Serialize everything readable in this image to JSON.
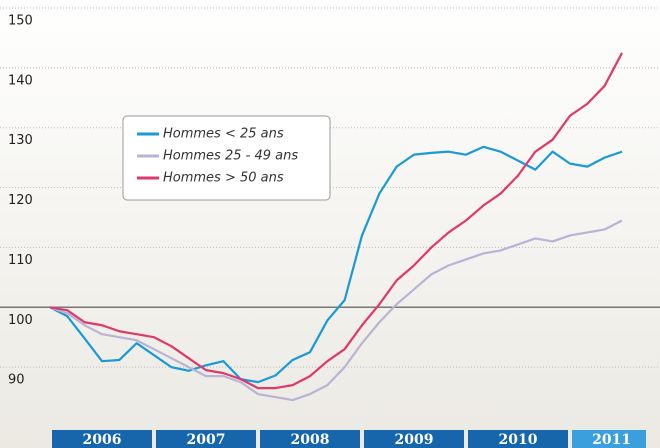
{
  "chart_data": {
    "type": "line",
    "x": [
      2006,
      2006.167,
      2006.333,
      2006.5,
      2006.667,
      2006.833,
      2007,
      2007.167,
      2007.333,
      2007.5,
      2007.667,
      2007.833,
      2008,
      2008.167,
      2008.333,
      2008.5,
      2008.667,
      2008.833,
      2009,
      2009.167,
      2009.333,
      2009.5,
      2009.667,
      2009.833,
      2010,
      2010.167,
      2010.333,
      2010.5,
      2010.667,
      2010.833,
      2011,
      2011.167,
      2011.333,
      2011.5
    ],
    "series": [
      {
        "name": "Hommes < 25 ans",
        "color": "#1a9ad6",
        "values": [
          100,
          98.5,
          94.8,
          91,
          91.2,
          94,
          92,
          90,
          89.4,
          90.3,
          91,
          88,
          87.5,
          88.6,
          91.2,
          92.5,
          97.8,
          101.2,
          112,
          119,
          123.5,
          125.5,
          125.8,
          126,
          125.5,
          126.8,
          126,
          124.5,
          123,
          126,
          124,
          123.5,
          125,
          126
        ]
      },
      {
        "name": "Hommes 25 - 49 ans",
        "color": "#b9b3d6",
        "values": [
          100,
          99,
          97,
          95.5,
          95,
          94.5,
          93,
          91.5,
          90,
          88.5,
          88.5,
          87.5,
          85.5,
          85,
          84.5,
          85.5,
          87,
          90,
          94,
          97.5,
          100.5,
          103,
          105.5,
          107,
          108,
          109,
          109.5,
          110.5,
          111.5,
          111,
          112,
          112.5,
          113,
          114.5
        ]
      },
      {
        "name": "Hommes > 50 ans",
        "color": "#e0386a",
        "values": [
          100,
          99.5,
          97.5,
          97,
          96,
          95.5,
          95,
          93.5,
          91.5,
          89.5,
          89,
          88,
          86.5,
          86.5,
          87,
          88.5,
          91,
          93,
          97,
          100.5,
          104.5,
          107,
          110,
          112.5,
          114.5,
          117,
          119,
          122,
          126,
          128,
          132,
          134,
          137,
          142.5
        ]
      }
    ],
    "xlim": [
      2006,
      2011.75
    ],
    "xticks": [
      {
        "value": 2006.5,
        "label": "2006"
      },
      {
        "value": 2007.5,
        "label": "2007"
      },
      {
        "value": 2008.5,
        "label": "2008"
      },
      {
        "value": 2009.5,
        "label": "2009"
      },
      {
        "value": 2010.5,
        "label": "2010"
      },
      {
        "value": 2011.4,
        "label": "2011"
      }
    ],
    "ylim": [
      79.5,
      150
    ],
    "yticks": [
      90,
      100,
      110,
      120,
      130,
      140,
      150
    ],
    "grid": true,
    "legend": "upper left"
  }
}
